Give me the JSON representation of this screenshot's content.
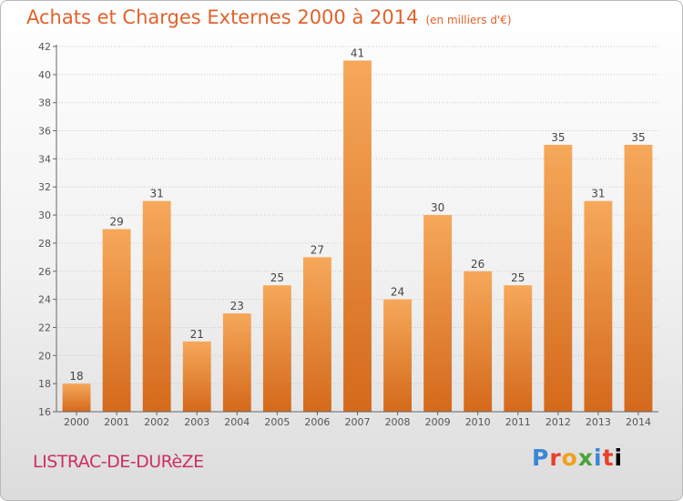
{
  "title": "Achats et Charges Externes 2000 à 2014",
  "subtitle": "(en milliers d'€)",
  "footer": {
    "place": "LISTRAC-DE-DURèZE",
    "logo_letters": [
      "P",
      "r",
      "o",
      "x",
      "i",
      "t",
      "i"
    ]
  },
  "colors": {
    "bar_top": "#f6a85a",
    "bar_bottom": "#d4691b",
    "title": "#e0622a",
    "place": "#cc2f66"
  },
  "chart_data": {
    "type": "bar",
    "categories": [
      "2000",
      "2001",
      "2002",
      "2003",
      "2004",
      "2005",
      "2006",
      "2007",
      "2008",
      "2009",
      "2010",
      "2011",
      "2012",
      "2013",
      "2014"
    ],
    "values": [
      18,
      29,
      31,
      21,
      23,
      25,
      27,
      41,
      24,
      30,
      26,
      25,
      35,
      31,
      35
    ],
    "yticks": [
      16,
      18,
      20,
      22,
      24,
      26,
      28,
      30,
      32,
      34,
      36,
      38,
      40,
      42
    ],
    "ylim": [
      16,
      42
    ],
    "grid": "horizontal dotted",
    "legend": "none"
  }
}
